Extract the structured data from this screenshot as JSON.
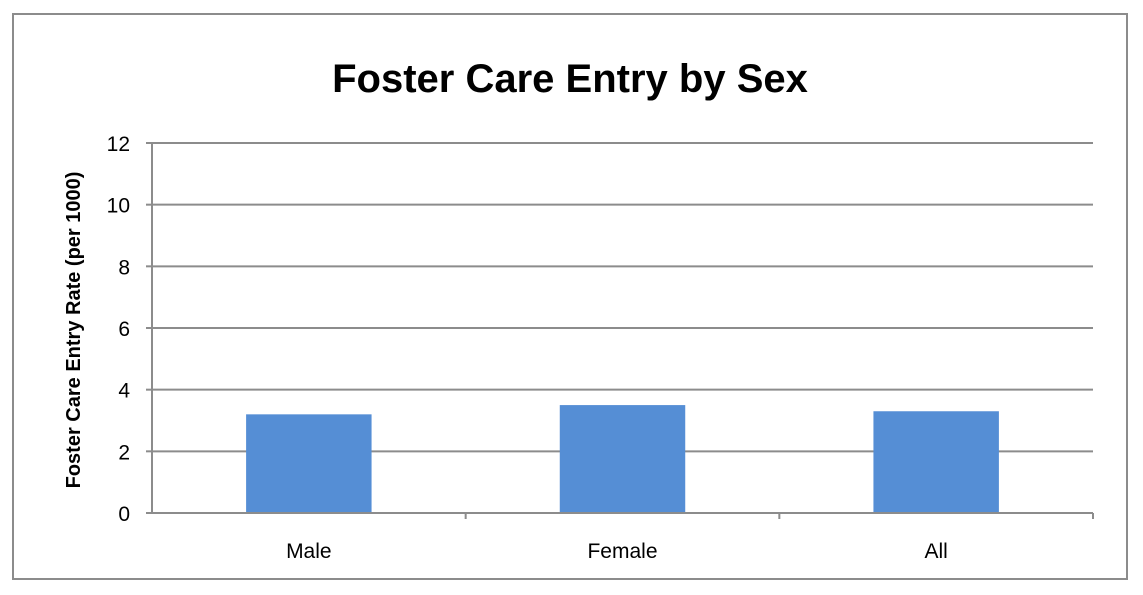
{
  "chart_data": {
    "type": "bar",
    "title": "Foster Care Entry by Sex",
    "xlabel": "",
    "ylabel": "Foster Care Entry Rate (per 1000)",
    "categories": [
      "Male",
      "Female",
      "All"
    ],
    "values": [
      3.2,
      3.5,
      3.3
    ],
    "ylim": [
      0,
      12
    ],
    "yticks": [
      0,
      2,
      4,
      6,
      8,
      10,
      12
    ],
    "grid": true,
    "legend": "none",
    "colors": {
      "bar": "#558ED5",
      "grid": "#8c8c8c",
      "axis": "#8c8c8c"
    }
  }
}
